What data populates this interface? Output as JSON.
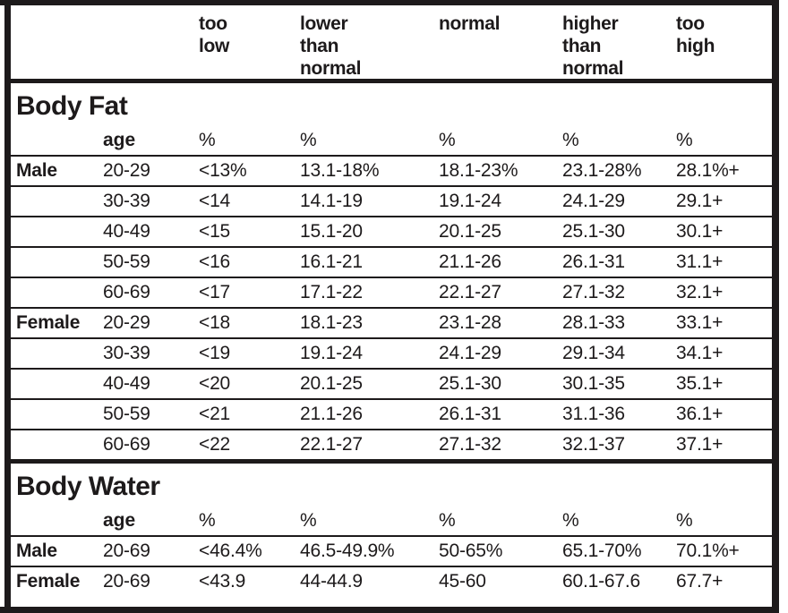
{
  "colors": {
    "border": "#1d1a1b",
    "text": "#1d1a1b",
    "background": "#ffffff"
  },
  "header": {
    "too_low": "too\nlow",
    "lower_than_normal": "lower\nthan\nnormal",
    "normal": "normal",
    "higher_than_normal": "higher\nthan\nnormal",
    "too_high": "too\nhigh"
  },
  "body_fat": {
    "title": "Body Fat",
    "age_label": "age",
    "percent_labels": [
      "%",
      "%",
      "%",
      "%",
      "%"
    ],
    "rows": [
      {
        "gender": "Male",
        "age": "20-29",
        "too_low": "<13%",
        "lower_than_normal": "13.1-18%",
        "normal": "18.1-23%",
        "higher_than_normal": "23.1-28%",
        "too_high": "28.1%+"
      },
      {
        "gender": "",
        "age": "30-39",
        "too_low": "<14",
        "lower_than_normal": "14.1-19",
        "normal": "19.1-24",
        "higher_than_normal": "24.1-29",
        "too_high": "29.1+"
      },
      {
        "gender": "",
        "age": "40-49",
        "too_low": "<15",
        "lower_than_normal": "15.1-20",
        "normal": "20.1-25",
        "higher_than_normal": "25.1-30",
        "too_high": "30.1+"
      },
      {
        "gender": "",
        "age": "50-59",
        "too_low": "<16",
        "lower_than_normal": "16.1-21",
        "normal": "21.1-26",
        "higher_than_normal": "26.1-31",
        "too_high": "31.1+"
      },
      {
        "gender": "",
        "age": "60-69",
        "too_low": "<17",
        "lower_than_normal": "17.1-22",
        "normal": "22.1-27",
        "higher_than_normal": "27.1-32",
        "too_high": "32.1+"
      },
      {
        "gender": "Female",
        "age": "20-29",
        "too_low": "<18",
        "lower_than_normal": "18.1-23",
        "normal": "23.1-28",
        "higher_than_normal": "28.1-33",
        "too_high": "33.1+"
      },
      {
        "gender": "",
        "age": "30-39",
        "too_low": "<19",
        "lower_than_normal": "19.1-24",
        "normal": "24.1-29",
        "higher_than_normal": "29.1-34",
        "too_high": "34.1+"
      },
      {
        "gender": "",
        "age": "40-49",
        "too_low": "<20",
        "lower_than_normal": "20.1-25",
        "normal": "25.1-30",
        "higher_than_normal": "30.1-35",
        "too_high": "35.1+"
      },
      {
        "gender": "",
        "age": "50-59",
        "too_low": "<21",
        "lower_than_normal": "21.1-26",
        "normal": "26.1-31",
        "higher_than_normal": "31.1-36",
        "too_high": "36.1+"
      },
      {
        "gender": "",
        "age": "60-69",
        "too_low": "<22",
        "lower_than_normal": "22.1-27",
        "normal": "27.1-32",
        "higher_than_normal": "32.1-37",
        "too_high": "37.1+"
      }
    ]
  },
  "body_water": {
    "title": "Body Water",
    "age_label": "age",
    "percent_labels": [
      "%",
      "%",
      "%",
      "%",
      "%"
    ],
    "rows": [
      {
        "gender": "Male",
        "age": "20-69",
        "too_low": "<46.4%",
        "lower_than_normal": "46.5-49.9%",
        "normal": "50-65%",
        "higher_than_normal": "65.1-70%",
        "too_high": "70.1%+"
      },
      {
        "gender": "Female",
        "age": "20-69",
        "too_low": "<43.9",
        "lower_than_normal": "44-44.9",
        "normal": "45-60",
        "higher_than_normal": "60.1-67.6",
        "too_high": "67.7+"
      }
    ]
  }
}
